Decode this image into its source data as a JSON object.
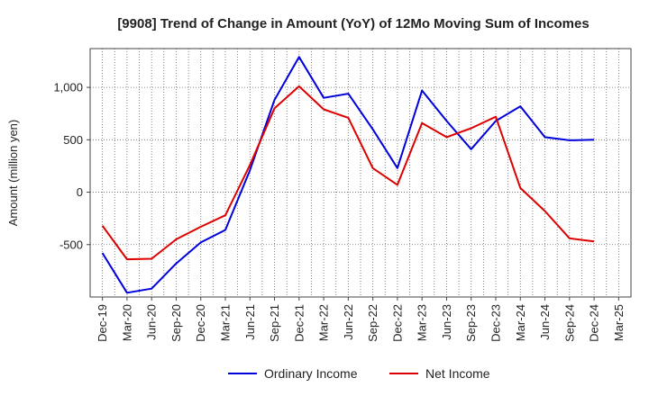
{
  "chart_data": {
    "type": "line",
    "title": "[9908]  Trend of Change in Amount (YoY) of 12Mo Moving Sum of Incomes",
    "ylabel": "Amount (million yen)",
    "xlabel": "",
    "categories": [
      "Dec-19",
      "Mar-20",
      "Jun-20",
      "Sep-20",
      "Dec-20",
      "Mar-21",
      "Jun-21",
      "Sep-21",
      "Dec-21",
      "Mar-22",
      "Jun-22",
      "Sep-22",
      "Dec-22",
      "Mar-23",
      "Jun-23",
      "Sep-23",
      "Dec-23",
      "Mar-24",
      "Jun-24",
      "Sep-24",
      "Dec-24",
      "Mar-25"
    ],
    "yticks": [
      -500,
      0,
      500,
      1000
    ],
    "ytick_labels": [
      "-500",
      "0",
      "500",
      "1,000"
    ],
    "ylim": [
      -1000,
      1370
    ],
    "grid": true,
    "legend_position": "bottom",
    "series": [
      {
        "name": "Ordinary Income",
        "color": "#0000dd",
        "values": [
          -580,
          -960,
          -920,
          -680,
          -480,
          -360,
          210,
          880,
          1290,
          900,
          940,
          600,
          230,
          970,
          680,
          410,
          680,
          820,
          525,
          495,
          500,
          null
        ]
      },
      {
        "name": "Net Income",
        "color": "#dd0000",
        "values": [
          -320,
          -640,
          -635,
          -450,
          -330,
          -220,
          260,
          800,
          1010,
          790,
          710,
          230,
          70,
          660,
          525,
          610,
          720,
          40,
          -180,
          -440,
          -470,
          null
        ]
      }
    ]
  }
}
